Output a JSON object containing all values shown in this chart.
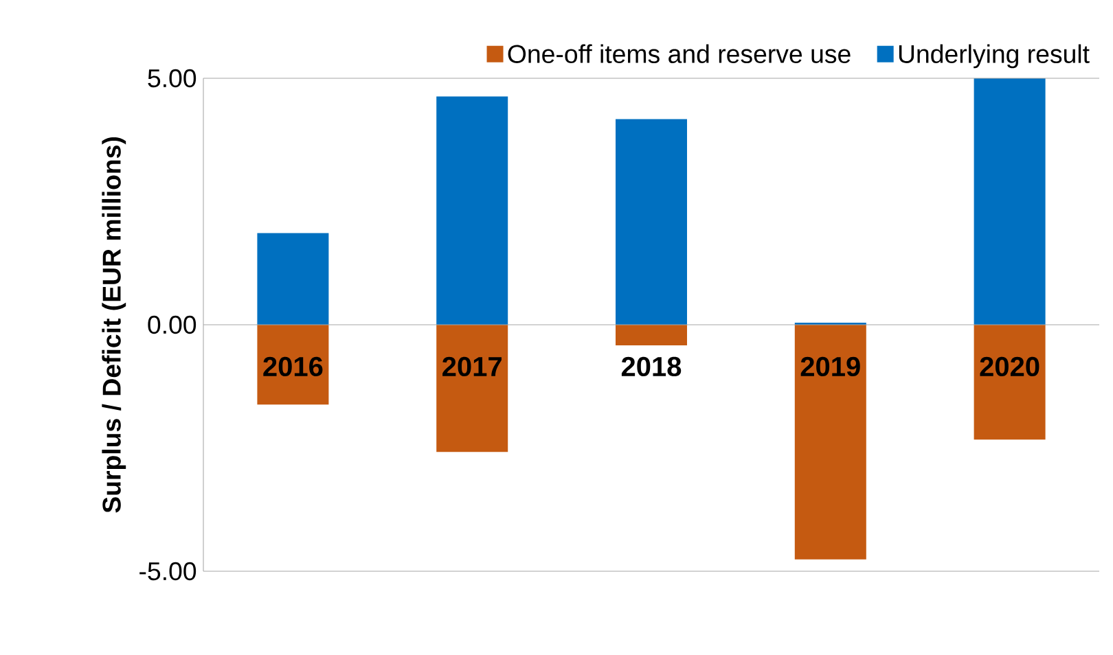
{
  "chart_data": {
    "type": "bar",
    "ylabel": "Surplus / Deficit (EUR millions)",
    "categories": [
      "2016",
      "2017",
      "2018",
      "2019",
      "2020"
    ],
    "stacked": true,
    "series": [
      {
        "name": "One-off items and reserve use",
        "color": "#c55a11",
        "values": [
          -1.62,
          -2.58,
          -0.42,
          -4.76,
          -2.33
        ]
      },
      {
        "name": "Underlying result",
        "color": "#0070c0",
        "values": [
          1.86,
          4.63,
          4.17,
          0.04,
          5.0
        ]
      }
    ],
    "ylim": [
      -5,
      5
    ],
    "yticks": [
      {
        "value": -5,
        "label": "-5.00"
      },
      {
        "value": 0,
        "label": "0.00"
      },
      {
        "value": 5,
        "label": "5.00"
      }
    ],
    "legend": "top right"
  }
}
